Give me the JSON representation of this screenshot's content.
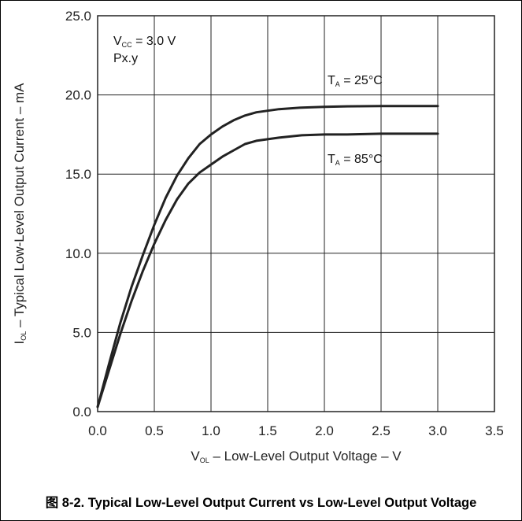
{
  "caption": "图 8-2. Typical Low-Level Output Current vs Low-Level Output Voltage",
  "colors": {
    "line": "#222222",
    "grid": "#222222",
    "frame": "#000000"
  },
  "chart_data": {
    "type": "line",
    "title": "",
    "xlabel": {
      "sym": "V",
      "sub": "OL",
      "rest": " – Low-Level Output Voltage – V"
    },
    "ylabel": {
      "sym": "I",
      "sub": "OL",
      "rest": " – Typical Low-Level Output Current – mA"
    },
    "xlim": [
      0,
      3.5
    ],
    "ylim": [
      0,
      25
    ],
    "xticks": [
      "0.0",
      "0.5",
      "1.0",
      "1.5",
      "2.0",
      "2.5",
      "3.0",
      "3.5"
    ],
    "yticks": [
      "0.0",
      "5.0",
      "10.0",
      "15.0",
      "20.0",
      "25.0"
    ],
    "grid": true,
    "annotations": [
      {
        "parts": [
          {
            "t": "V",
            "sub": false
          },
          {
            "t": "CC",
            "sub": true
          },
          {
            "t": " = 3.0 V",
            "sub": false
          }
        ]
      },
      {
        "parts": [
          {
            "t": "Px.y",
            "sub": false
          }
        ]
      }
    ],
    "series": [
      {
        "label_parts": [
          {
            "t": "T",
            "sub": false
          },
          {
            "t": "A",
            "sub": true
          },
          {
            "t": " = 25°C",
            "sub": false
          }
        ],
        "x": [
          0.0,
          0.1,
          0.2,
          0.3,
          0.4,
          0.5,
          0.6,
          0.7,
          0.8,
          0.9,
          1.0,
          1.1,
          1.2,
          1.3,
          1.4,
          1.5,
          1.6,
          1.8,
          2.0,
          2.2,
          2.5,
          2.8,
          3.0
        ],
        "y": [
          0.3,
          3.0,
          5.6,
          7.9,
          9.9,
          11.8,
          13.5,
          14.9,
          16.0,
          16.9,
          17.5,
          18.0,
          18.4,
          18.7,
          18.9,
          19.0,
          19.1,
          19.2,
          19.25,
          19.28,
          19.3,
          19.3,
          19.3
        ]
      },
      {
        "label_parts": [
          {
            "t": "T",
            "sub": false
          },
          {
            "t": "A",
            "sub": true
          },
          {
            "t": " = 85°C",
            "sub": false
          }
        ],
        "x": [
          0.0,
          0.1,
          0.2,
          0.3,
          0.4,
          0.5,
          0.6,
          0.7,
          0.8,
          0.9,
          1.0,
          1.1,
          1.2,
          1.3,
          1.4,
          1.5,
          1.6,
          1.8,
          2.0,
          2.2,
          2.5,
          2.8,
          3.0
        ],
        "y": [
          0.3,
          2.6,
          4.9,
          7.0,
          8.9,
          10.6,
          12.1,
          13.4,
          14.4,
          15.1,
          15.6,
          16.1,
          16.5,
          16.9,
          17.1,
          17.2,
          17.3,
          17.45,
          17.5,
          17.5,
          17.55,
          17.55,
          17.55
        ]
      }
    ]
  }
}
